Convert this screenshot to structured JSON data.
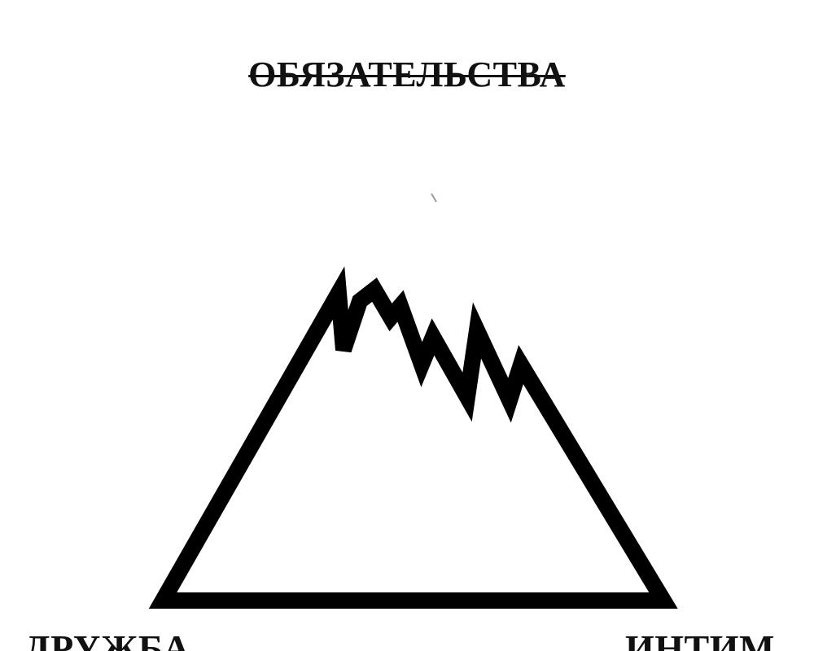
{
  "labels": {
    "top": "ОБЯЗАТЕЛЬСТВА",
    "bottom_left": "ДРУЖБА",
    "bottom_right": "ИНТИМ"
  },
  "colors": {
    "stroke": "#000000",
    "text": "#111111",
    "background": "#ffffff"
  }
}
